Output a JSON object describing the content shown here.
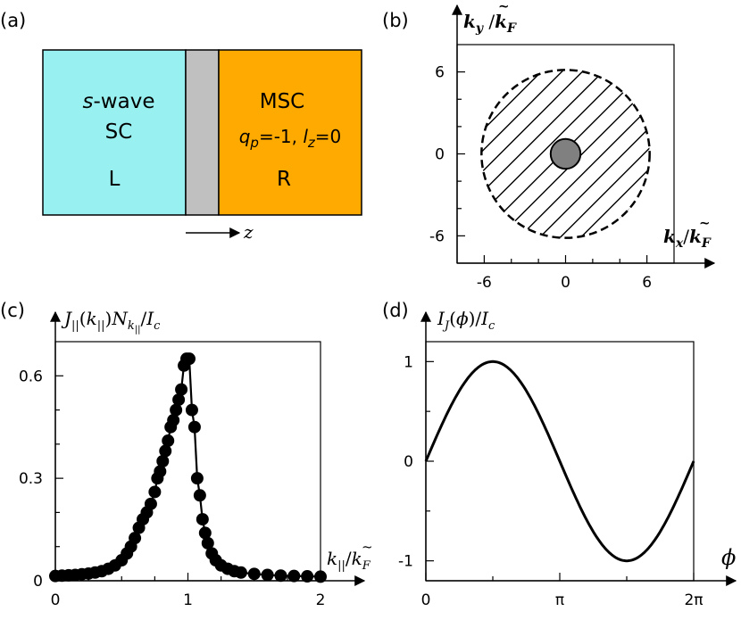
{
  "panels": {
    "a": {
      "label": "(a)",
      "left_box": {
        "line1_italic": "s",
        "line1_rest": "-wave",
        "line2": "SC",
        "side": "L",
        "color": "#99f0f0"
      },
      "barrier_color": "#c0c0c0",
      "right_box": {
        "line1": "MSC",
        "q_sym": "q",
        "q_sub": "p",
        "q_val": "=-1,",
        "l_sym": "l",
        "l_sub": "z",
        "l_val": "=0",
        "side": "R",
        "color": "#ffaa00"
      },
      "axis_label": "z"
    },
    "b": {
      "label": "(b)",
      "xlabel": "k",
      "xlabel_sub": "x",
      "ylabel": "k",
      "ylabel_sub": "y",
      "norm": "/",
      "kf": "k",
      "kf_sub": "F"
    },
    "c": {
      "label": "(c)"
    },
    "d": {
      "label": "(d)"
    }
  },
  "chart_data": [
    {
      "panel": "b",
      "type": "scatter",
      "description_free": true,
      "x_ticks": [
        "-6",
        "0",
        "6"
      ],
      "y_ticks": [
        "-6",
        "0",
        "6"
      ],
      "xlim": [
        -8,
        8
      ],
      "ylim": [
        -8,
        8
      ],
      "fermi_sphere_radius": 6.2,
      "inner_disk_radius": 1.1,
      "inner_disk_color": "#808080"
    },
    {
      "panel": "c",
      "type": "scatter",
      "ylabel": {
        "J": "J",
        "par": "||",
        "k": "k",
        "N": "N",
        "Ic": "I",
        "c": "c"
      },
      "xlabel": {
        "k": "k",
        "par": "||",
        "kf": "k",
        "F": "F"
      },
      "x_ticks": [
        "0",
        "1",
        "2"
      ],
      "y_ticks": [
        "0",
        "0.3",
        "0.6"
      ],
      "xlim": [
        0,
        2
      ],
      "ylim": [
        0,
        0.7
      ],
      "x": [
        0.0,
        0.05,
        0.1,
        0.15,
        0.2,
        0.25,
        0.3,
        0.35,
        0.4,
        0.45,
        0.5,
        0.54,
        0.57,
        0.6,
        0.63,
        0.66,
        0.69,
        0.72,
        0.75,
        0.77,
        0.79,
        0.81,
        0.83,
        0.85,
        0.87,
        0.89,
        0.91,
        0.93,
        0.95,
        0.97,
        0.99,
        1.01,
        1.03,
        1.05,
        1.07,
        1.09,
        1.11,
        1.13,
        1.15,
        1.18,
        1.21,
        1.25,
        1.3,
        1.35,
        1.4,
        1.5,
        1.6,
        1.7,
        1.8,
        1.9,
        2.0
      ],
      "values": [
        0.014,
        0.015,
        0.016,
        0.017,
        0.019,
        0.021,
        0.024,
        0.028,
        0.035,
        0.045,
        0.06,
        0.08,
        0.1,
        0.125,
        0.155,
        0.18,
        0.2,
        0.225,
        0.26,
        0.3,
        0.32,
        0.35,
        0.38,
        0.41,
        0.45,
        0.47,
        0.5,
        0.53,
        0.56,
        0.63,
        0.65,
        0.65,
        0.5,
        0.45,
        0.3,
        0.25,
        0.18,
        0.14,
        0.11,
        0.08,
        0.06,
        0.045,
        0.035,
        0.028,
        0.024,
        0.02,
        0.017,
        0.015,
        0.014,
        0.013,
        0.012
      ]
    },
    {
      "panel": "d",
      "type": "line",
      "ylabel": {
        "I": "I",
        "J": "J",
        "phi": "ϕ",
        "Ic": "I",
        "c": "c"
      },
      "xlabel": "ϕ",
      "x_ticks": [
        "0",
        "π",
        "2π"
      ],
      "y_ticks": [
        "-1",
        "0",
        "1"
      ],
      "xlim": [
        0,
        6.2832
      ],
      "ylim": [
        -1.2,
        1.2
      ],
      "function": "sin"
    }
  ]
}
